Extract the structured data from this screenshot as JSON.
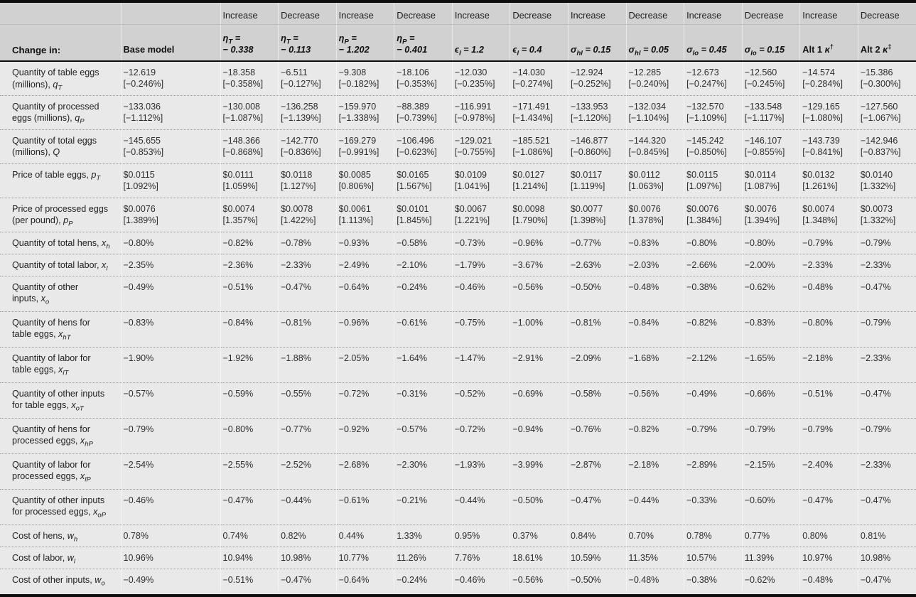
{
  "table": {
    "corner_label": "Change in:",
    "columns": [
      {
        "direction": "",
        "param_top": "",
        "param": "Base model",
        "style": "plain"
      },
      {
        "direction": "Increase",
        "param_top": "{eta_T} =",
        "param": "− 0.338",
        "style": "italic"
      },
      {
        "direction": "Decrease",
        "param_top": "{eta_T} =",
        "param": "− 0.113",
        "style": "italic"
      },
      {
        "direction": "Increase",
        "param_top": "{eta_P} =",
        "param": "− 1.202",
        "style": "italic"
      },
      {
        "direction": "Decrease",
        "param_top": "{eta_P} =",
        "param": "− 0.401",
        "style": "italic"
      },
      {
        "direction": "Increase",
        "param_top": "",
        "param": "{epsilon_l} = 1.2",
        "style": "italic"
      },
      {
        "direction": "Decrease",
        "param_top": "",
        "param": "{epsilon_l} = 0.4",
        "style": "italic"
      },
      {
        "direction": "Increase",
        "param_top": "",
        "param": "{sigma_hl} = 0.15",
        "style": "italic"
      },
      {
        "direction": "Decrease",
        "param_top": "",
        "param": "{sigma_hl} = 0.05",
        "style": "italic"
      },
      {
        "direction": "Increase",
        "param_top": "",
        "param": "{sigma_lo} = 0.45",
        "style": "italic"
      },
      {
        "direction": "Decrease",
        "param_top": "",
        "param": "{sigma_lo} = 0.15",
        "style": "italic"
      },
      {
        "direction": "Increase",
        "param_top": "",
        "param": "Alt 1 {kappa}^†",
        "style": "plain"
      },
      {
        "direction": "Decrease",
        "param_top": "",
        "param": "Alt 2 {kappa}^‡",
        "style": "plain"
      }
    ],
    "rows": [
      {
        "label": "Quantity of table eggs\n(millions), {q_T}",
        "values": [
          "−12.619",
          "−18.358",
          "−6.511",
          "−9.308",
          "−18.106",
          "−12.030",
          "−14.030",
          "−12.924",
          "−12.285",
          "−12.673",
          "−12.560",
          "−14.574",
          "−15.386"
        ],
        "brackets": [
          "[−0.246%]",
          "[−0.358%]",
          "[−0.127%]",
          "[−0.182%]",
          "[−0.353%]",
          "[−0.235%]",
          "[−0.274%]",
          "[−0.252%]",
          "[−0.240%]",
          "[−0.247%]",
          "[−0.245%]",
          "[−0.284%]",
          "[−0.300%]"
        ]
      },
      {
        "label": "Quantity of processed\neggs (millions), {q_P}",
        "values": [
          "−133.036",
          "−130.008",
          "−136.258",
          "−159.970",
          "−88.389",
          "−116.991",
          "−171.491",
          "−133.953",
          "−132.034",
          "−132.570",
          "−133.548",
          "−129.165",
          "−127.560"
        ],
        "brackets": [
          "[−1.112%]",
          "[−1.087%]",
          "[−1.139%]",
          "[−1.338%]",
          "[−0.739%]",
          "[−0.978%]",
          "[−1.434%]",
          "[−1.120%]",
          "[−1.104%]",
          "[−1.109%]",
          "[−1.117%]",
          "[−1.080%]",
          "[−1.067%]"
        ]
      },
      {
        "label": "Quantity of total eggs\n(millions), {Q}",
        "values": [
          "−145.655",
          "−148.366",
          "−142.770",
          "−169.279",
          "−106.496",
          "−129.021",
          "−185.521",
          "−146.877",
          "−144.320",
          "−145.242",
          "−146.107",
          "−143.739",
          "−142.946"
        ],
        "brackets": [
          "[−0.853%]",
          "[−0.868%]",
          "[−0.836%]",
          "[−0.991%]",
          "[−0.623%]",
          "[−0.755%]",
          "[−1.086%]",
          "[−0.860%]",
          "[−0.845%]",
          "[−0.850%]",
          "[−0.855%]",
          "[−0.841%]",
          "[−0.837%]"
        ]
      },
      {
        "label": "Price of table eggs, {p_T}",
        "values": [
          "$0.0115",
          "$0.0111",
          "$0.0118",
          "$0.0085",
          "$0.0165",
          "$0.0109",
          "$0.0127",
          "$0.0117",
          "$0.0112",
          "$0.0115",
          "$0.0114",
          "$0.0132",
          "$0.0140"
        ],
        "brackets": [
          "[1.092%]",
          "[1.059%]",
          "[1.127%]",
          "[0.806%]",
          "[1.567%]",
          "[1.041%]",
          "[1.214%]",
          "[1.119%]",
          "[1.063%]",
          "[1.097%]",
          "[1.087%]",
          "[1.261%]",
          "[1.332%]"
        ]
      },
      {
        "label": "Price of processed eggs\n(per pound), {p_P}",
        "values": [
          "$0.0076",
          "$0.0074",
          "$0.0078",
          "$0.0061",
          "$0.0101",
          "$0.0067",
          "$0.0098",
          "$0.0077",
          "$0.0076",
          "$0.0076",
          "$0.0076",
          "$0.0074",
          "$0.0073"
        ],
        "brackets": [
          "[1.389%]",
          "[1.357%]",
          "[1.422%]",
          "[1.113%]",
          "[1.845%]",
          "[1.221%]",
          "[1.790%]",
          "[1.398%]",
          "[1.378%]",
          "[1.384%]",
          "[1.394%]",
          "[1.348%]",
          "[1.332%]"
        ]
      },
      {
        "label": "Quantity of total hens, {x_h}",
        "values": [
          "−0.80%",
          "−0.82%",
          "−0.78%",
          "−0.93%",
          "−0.58%",
          "−0.73%",
          "−0.96%",
          "−0.77%",
          "−0.83%",
          "−0.80%",
          "−0.80%",
          "−0.79%",
          "−0.79%"
        ]
      },
      {
        "label": "Quantity of total labor, {x_l}",
        "values": [
          "−2.35%",
          "−2.36%",
          "−2.33%",
          "−2.49%",
          "−2.10%",
          "−1.79%",
          "−3.67%",
          "−2.63%",
          "−2.03%",
          "−2.66%",
          "−2.00%",
          "−2.33%",
          "−2.33%"
        ]
      },
      {
        "label": "Quantity of other\ninputs, {x_o}",
        "values": [
          "−0.49%",
          "−0.51%",
          "−0.47%",
          "−0.64%",
          "−0.24%",
          "−0.46%",
          "−0.56%",
          "−0.50%",
          "−0.48%",
          "−0.38%",
          "−0.62%",
          "−0.48%",
          "−0.47%"
        ]
      },
      {
        "label": "Quantity of hens for\ntable eggs, {x_hT}",
        "values": [
          "−0.83%",
          "−0.84%",
          "−0.81%",
          "−0.96%",
          "−0.61%",
          "−0.75%",
          "−1.00%",
          "−0.81%",
          "−0.84%",
          "−0.82%",
          "−0.83%",
          "−0.80%",
          "−0.79%"
        ]
      },
      {
        "label": "Quantity of labor for\ntable eggs, {x_lT}",
        "values": [
          "−1.90%",
          "−1.92%",
          "−1.88%",
          "−2.05%",
          "−1.64%",
          "−1.47%",
          "−2.91%",
          "−2.09%",
          "−1.68%",
          "−2.12%",
          "−1.65%",
          "−2.18%",
          "−2.33%"
        ]
      },
      {
        "label": "Quantity of other inputs\nfor table eggs, {x_oT}",
        "values": [
          "−0.57%",
          "−0.59%",
          "−0.55%",
          "−0.72%",
          "−0.31%",
          "−0.52%",
          "−0.69%",
          "−0.58%",
          "−0.56%",
          "−0.49%",
          "−0.66%",
          "−0.51%",
          "−0.47%"
        ]
      },
      {
        "label": "Quantity of hens for\nprocessed eggs, {x_hP}",
        "values": [
          "−0.79%",
          "−0.80%",
          "−0.77%",
          "−0.92%",
          "−0.57%",
          "−0.72%",
          "−0.94%",
          "−0.76%",
          "−0.82%",
          "−0.79%",
          "−0.79%",
          "−0.79%",
          "−0.79%"
        ]
      },
      {
        "label": "Quantity of labor for\nprocessed eggs, {x_lP}",
        "values": [
          "−2.54%",
          "−2.55%",
          "−2.52%",
          "−2.68%",
          "−2.30%",
          "−1.93%",
          "−3.99%",
          "−2.87%",
          "−2.18%",
          "−2.89%",
          "−2.15%",
          "−2.40%",
          "−2.33%"
        ]
      },
      {
        "label": "Quantity of other inputs\nfor processed eggs, {x_oP}",
        "values": [
          "−0.46%",
          "−0.47%",
          "−0.44%",
          "−0.61%",
          "−0.21%",
          "−0.44%",
          "−0.50%",
          "−0.47%",
          "−0.44%",
          "−0.33%",
          "−0.60%",
          "−0.47%",
          "−0.47%"
        ]
      },
      {
        "label": "Cost of hens, {w_h}",
        "values": [
          "0.78%",
          "0.74%",
          "0.82%",
          "0.44%",
          "1.33%",
          "0.95%",
          "0.37%",
          "0.84%",
          "0.70%",
          "0.78%",
          "0.77%",
          "0.80%",
          "0.81%"
        ]
      },
      {
        "label": "Cost of labor, {w_l}",
        "values": [
          "10.96%",
          "10.94%",
          "10.98%",
          "10.77%",
          "11.26%",
          "7.76%",
          "18.61%",
          "10.59%",
          "11.35%",
          "10.57%",
          "11.39%",
          "10.97%",
          "10.98%"
        ]
      },
      {
        "label": "Cost of other inputs, {w_o}",
        "values": [
          "−0.49%",
          "−0.51%",
          "−0.47%",
          "−0.64%",
          "−0.24%",
          "−0.46%",
          "−0.56%",
          "−0.50%",
          "−0.48%",
          "−0.38%",
          "−0.62%",
          "−0.48%",
          "−0.47%"
        ]
      }
    ],
    "colors": {
      "header_bg": "#d1d1d1",
      "body_bg": "#e9e9e9",
      "rule_black": "#0e0e0e",
      "row_separator": "#999999"
    }
  }
}
